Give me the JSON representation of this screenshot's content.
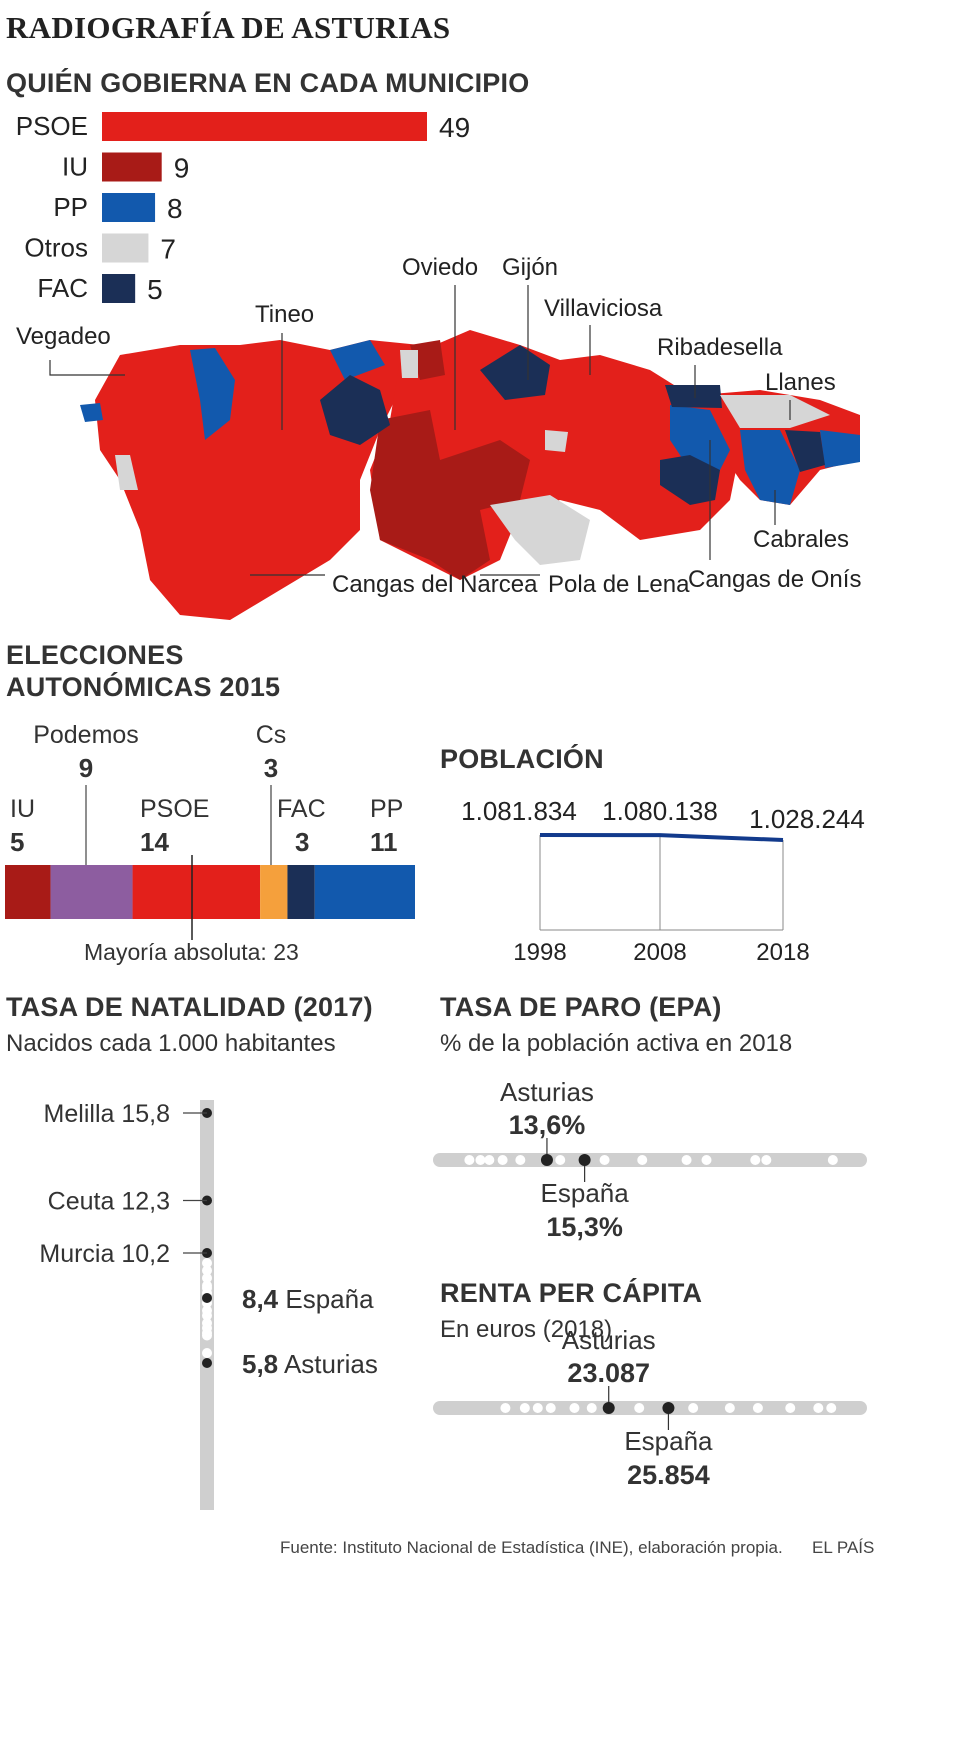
{
  "main_title": "RADIOGRAFÍA DE ASTURIAS",
  "colors": {
    "PSOE": "#e3201b",
    "IU": "#a81b17",
    "PP": "#1259ad",
    "Otros": "#d6d6d6",
    "FAC": "#1b2f56",
    "Podemos": "#8d5da0",
    "Cs": "#f5a03c"
  },
  "municipios": {
    "title": "QUIÉN GOBIERNA EN CADA MUNICIPIO",
    "map_labels": [
      "Vegadeo",
      "Tineo",
      "Oviedo",
      "Gijón",
      "Villaviciosa",
      "Ribadesella",
      "Llanes",
      "Cabrales",
      "Cangas de Onís",
      "Pola de Lena",
      "Cangas del Narcea"
    ]
  },
  "elecciones": {
    "title_line1": "ELECCIONES",
    "title_line2": "AUTONÓMICAS 2015",
    "mayoria": "Mayoría absoluta: 23"
  },
  "poblacion": {
    "title": "POBLACIÓN"
  },
  "natalidad": {
    "title": "TASA DE NATALIDAD (2017)",
    "subtitle": "Nacidos cada 1.000 habitantes"
  },
  "paro": {
    "title": "TASA DE PARO (EPA)",
    "subtitle": "% de la población activa en 2018",
    "asturias_label": "Asturias",
    "asturias_value": "13,6%",
    "espana_label": "España",
    "espana_value": "15,3%"
  },
  "renta": {
    "title": "RENTA PER CÁPITA",
    "subtitle": "En euros (2018)",
    "asturias_label": "Asturias",
    "asturias_value": "23.087",
    "espana_label": "España",
    "espana_value": "25.854"
  },
  "footer": {
    "source": "Fuente: Instituto Nacional de Estadística (INE), elaboración propia.",
    "brand": "EL PAÍS"
  },
  "chart_data": [
    {
      "type": "bar",
      "title": "QUIÉN GOBIERNA EN CADA MUNICIPIO",
      "categories": [
        "PSOE",
        "IU",
        "PP",
        "Otros",
        "FAC"
      ],
      "values": [
        49,
        9,
        8,
        7,
        5
      ]
    },
    {
      "type": "bar",
      "title": "ELECCIONES AUTONÓMICAS 2015",
      "categories": [
        "IU",
        "Podemos",
        "PSOE",
        "Cs",
        "FAC",
        "PP"
      ],
      "values": [
        5,
        9,
        14,
        3,
        3,
        11
      ],
      "total": 45
    },
    {
      "type": "line",
      "title": "POBLACIÓN",
      "x": [
        "1998",
        "2008",
        "2018"
      ],
      "values": [
        1081834,
        1080138,
        1028244
      ],
      "value_labels": [
        "1.081.834",
        "1.080.138",
        "1.028.244"
      ]
    },
    {
      "type": "scatter",
      "title": "TASA DE NATALIDAD (2017)",
      "labeled": [
        {
          "name": "Melilla",
          "value": 15.8,
          "label": "15,8"
        },
        {
          "name": "Ceuta",
          "value": 12.3,
          "label": "12,3"
        },
        {
          "name": "Murcia",
          "value": 10.2,
          "label": "10,2"
        },
        {
          "name": "España",
          "value": 8.4,
          "label": "8,4"
        },
        {
          "name": "Asturias",
          "value": 5.8,
          "label": "5,8"
        }
      ],
      "other_regions": [
        9.8,
        9.5,
        9.2,
        8.9,
        8.8,
        8.6,
        8.2,
        7.9,
        7.7,
        7.4,
        7.2,
        7.0,
        6.9,
        6.2
      ]
    },
    {
      "type": "scatter",
      "title": "TASA DE PARO (EPA)",
      "highlight": [
        {
          "name": "Asturias",
          "value": 13.6
        },
        {
          "name": "España",
          "value": 15.3
        }
      ],
      "other_regions": [
        10.1,
        10.6,
        11.0,
        11.6,
        12.4,
        14.2,
        16.2,
        17.9,
        19.9,
        20.8,
        23.0,
        23.5,
        26.5
      ]
    },
    {
      "type": "scatter",
      "title": "RENTA PER CÁPITA",
      "highlight": [
        {
          "name": "Asturias",
          "value": 23087
        },
        {
          "name": "España",
          "value": 25854
        }
      ],
      "other_regions": [
        18300,
        19200,
        19800,
        20400,
        21500,
        22300,
        24500,
        27000,
        28700,
        30000,
        31500,
        32800,
        33400
      ]
    }
  ]
}
